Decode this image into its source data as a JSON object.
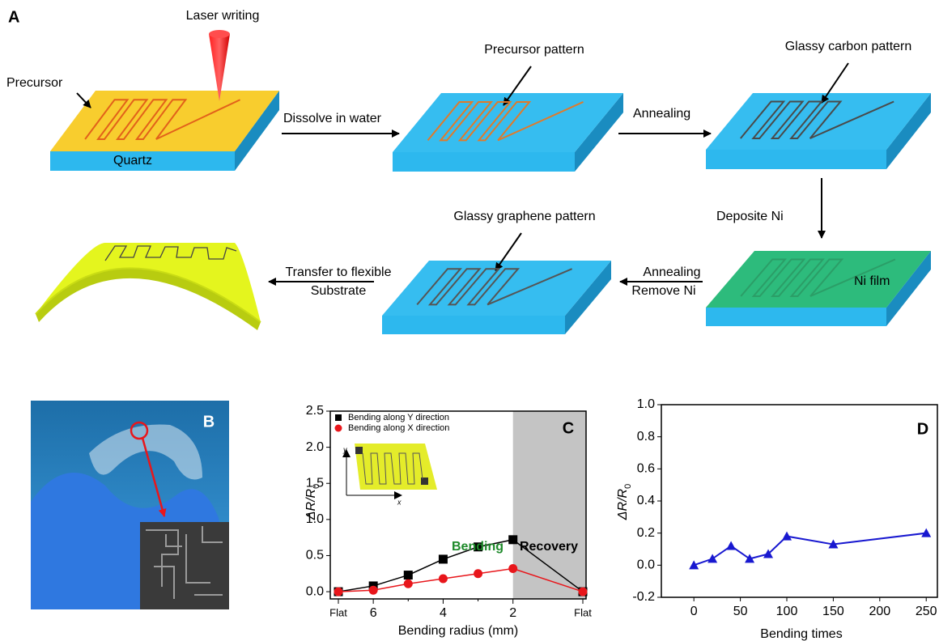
{
  "panel_a": {
    "label": "A",
    "laser_writing": "Laser writing",
    "precursor": "Precursor",
    "quartz": "Quartz",
    "step1": "Dissolve in water",
    "precursor_pattern": "Precursor pattern",
    "step2": "Annealing",
    "glassy_carbon_pattern": "Glassy carbon pattern",
    "step3": "Deposite Ni",
    "ni_film": "Ni film",
    "step4": [
      "Annealing",
      "Remove Ni"
    ],
    "glassy_graphene_pattern": "Glassy graphene pattern",
    "step5": [
      "Transfer to flexible",
      "Substrate"
    ]
  },
  "panel_b": {
    "label": "B"
  },
  "chart_data": [
    {
      "type": "line",
      "panel_label": "C",
      "y_label": "ΔR/R",
      "y_label_sub": "0",
      "x_label": "Bending radius (mm)",
      "categories": [
        "Flat",
        "6",
        null,
        "4",
        null,
        "2",
        "Flat"
      ],
      "series": [
        {
          "name": "Bending along Y direction",
          "color": "#000000",
          "marker": "square",
          "values": [
            0,
            0.08,
            0.23,
            0.45,
            0.62,
            0.72,
            0
          ]
        },
        {
          "name": "Bending along X direction",
          "color": "#e8161b",
          "marker": "circle",
          "values": [
            0,
            0.02,
            0.11,
            0.18,
            0.25,
            0.32,
            0
          ]
        }
      ],
      "ylim": [
        -0.1,
        2.5
      ],
      "yticks": [
        {
          "value": 0,
          "label": "0.0"
        },
        0.5,
        {
          "value": 1,
          "label": "1.0"
        },
        1.5,
        {
          "value": 2,
          "label": "2.0"
        },
        2.5
      ],
      "annotations": [
        "Bending",
        "Recovery"
      ],
      "inset_labels": [
        "y",
        "x"
      ]
    },
    {
      "type": "line",
      "panel_label": "D",
      "y_label": "ΔR/R",
      "y_label_sub": "0",
      "x_label": "Bending times",
      "x": [
        0,
        20,
        40,
        60,
        80,
        100,
        150,
        250
      ],
      "values": [
        0,
        0.04,
        0.12,
        0.04,
        0.07,
        0.18,
        0.13,
        0.2
      ],
      "color": "#1818d0",
      "marker": "triangle",
      "xlim": [
        -35,
        262
      ],
      "xticks": [
        0,
        50,
        100,
        150,
        200,
        250
      ],
      "ylim": [
        -0.2,
        1.0
      ],
      "yticks": [
        -0.2,
        {
          "value": 0,
          "label": "0.0"
        },
        0.2,
        0.4,
        0.6,
        0.8,
        {
          "value": 1,
          "label": "1.0"
        }
      ]
    }
  ]
}
